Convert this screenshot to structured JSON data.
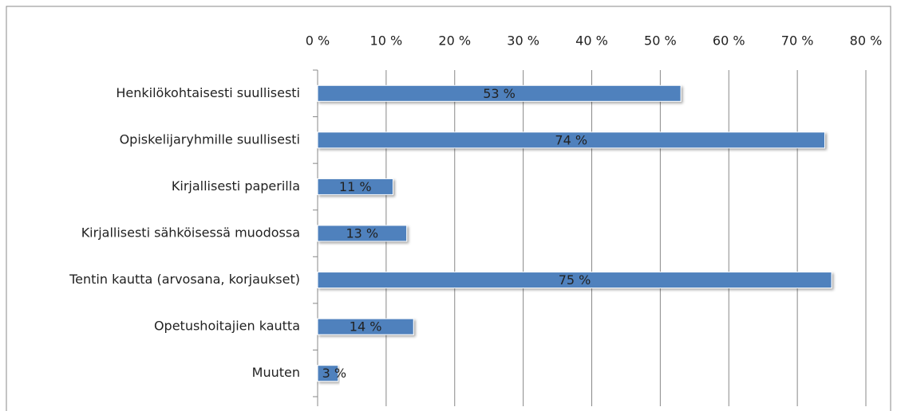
{
  "chart_data": {
    "type": "hbar",
    "categories": [
      "Henkilökohtaisesti suullisesti",
      "Opiskelijaryhmille suullisesti",
      "Kirjallisesti paperilla",
      "Kirjallisesti sähköisessä muodossa",
      "Tentin kautta (arvosana, korjaukset)",
      "Opetushoitajien kautta",
      "Muuten"
    ],
    "values": [
      53,
      74,
      11,
      13,
      75,
      14,
      3
    ],
    "value_labels": [
      "53 %",
      "74 %",
      "11 %",
      "13 %",
      "75 %",
      "14 %",
      "3 %"
    ],
    "color": "#4f81bd",
    "xlim": [
      0,
      80
    ],
    "xticks": [
      {
        "value": 0,
        "label": "0 %"
      },
      {
        "value": 10,
        "label": "10 %"
      },
      {
        "value": 20,
        "label": "20 %"
      },
      {
        "value": 30,
        "label": "30 %"
      },
      {
        "value": 40,
        "label": "40 %"
      },
      {
        "value": 50,
        "label": "50 %"
      },
      {
        "value": 60,
        "label": "60 %"
      },
      {
        "value": 70,
        "label": "70 %"
      },
      {
        "value": 80,
        "label": "80 %"
      }
    ],
    "grid": true
  }
}
